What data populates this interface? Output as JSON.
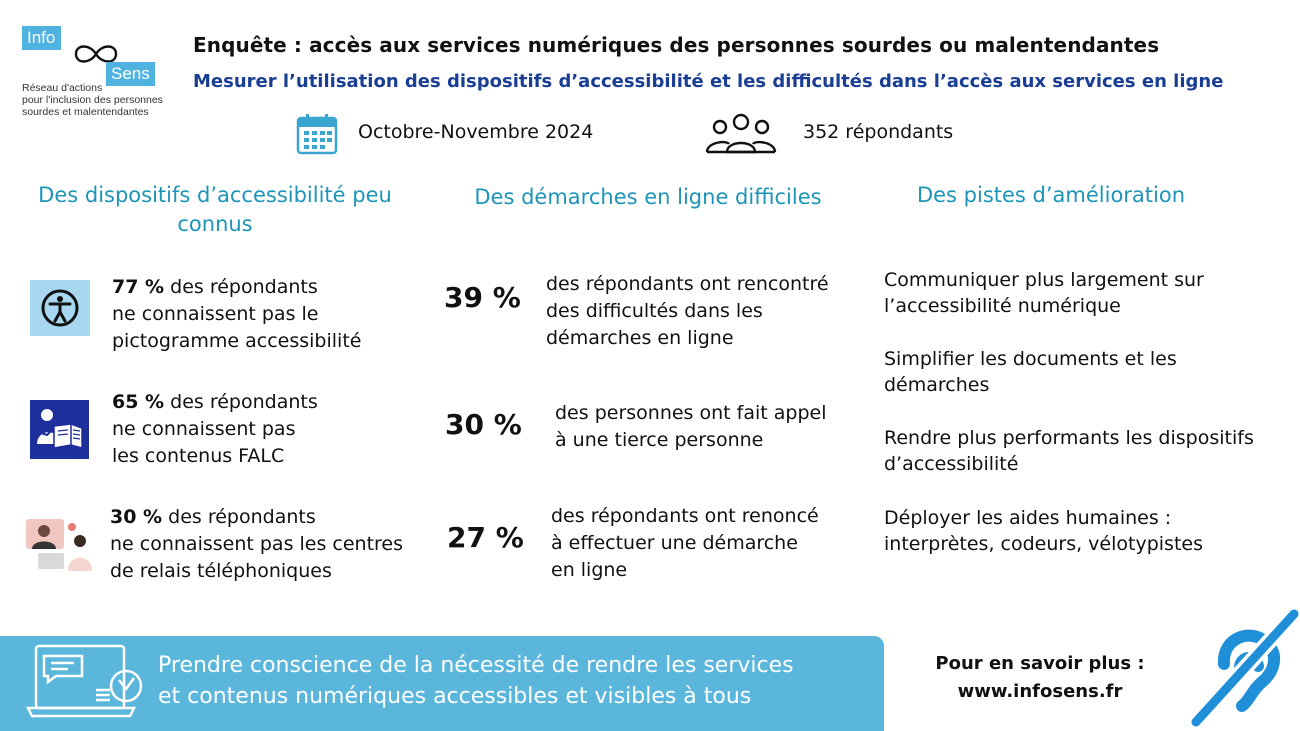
{
  "logo": {
    "word1": "Info",
    "word2": "Sens",
    "tagline": [
      "Réseau d'actions",
      "pour l'inclusion des personnes",
      "sourdes et malentendantes"
    ]
  },
  "header": {
    "title": "Enquête : accès aux services numériques des personnes sourdes ou malentendantes",
    "subtitle": "Mesurer l’utilisation des dispositifs d’accessibilité et les difficultés dans l’accès aux services en ligne"
  },
  "meta": {
    "date": "Octobre-Novembre 2024",
    "respondents": "352 répondants"
  },
  "columns": {
    "accessibility": {
      "heading_line1": "Des dispositifs d’accessibilité peu",
      "heading_line2": "connus",
      "items": [
        {
          "pct": "77 %",
          "line1": " des répondants",
          "line2": "ne connaissent pas le",
          "line3": "pictogramme accessibilité",
          "icon": "accessibility-pictogram-icon"
        },
        {
          "pct": "65 %",
          "line1": " des répondants",
          "line2": "ne connaissent pas",
          "line3": "les contenus FALC",
          "icon": "falc-easy-read-icon"
        },
        {
          "pct": "30 %",
          "line1": " des répondants",
          "line2": "ne connaissent pas les centres",
          "line3": "de relais téléphoniques",
          "icon": "relay-center-icon"
        }
      ]
    },
    "online": {
      "heading": "Des démarches en ligne difficiles",
      "items": [
        {
          "pct": "39 %",
          "line1": "des répondants ont rencontré",
          "line2": "des difficultés dans les",
          "line3": "démarches en ligne"
        },
        {
          "pct": "30 %",
          "line1": "des personnes ont fait appel",
          "line2": "à une tierce personne",
          "line3": ""
        },
        {
          "pct": "27 %",
          "line1": "des répondants ont renoncé",
          "line2": "à effectuer une démarche",
          "line3": "en ligne"
        }
      ]
    },
    "improvements": {
      "heading": "Des pistes d’amélioration",
      "items": [
        {
          "line1": "Communiquer plus largement sur",
          "line2": "l’accessibilité numérique"
        },
        {
          "line1": "Simplifier les documents et les",
          "line2": "démarches"
        },
        {
          "line1": "Rendre plus performants les dispositifs",
          "line2": "d’accessibilité"
        },
        {
          "line1": "Déployer les aides humaines :",
          "line2": "interprètes, codeurs, vélotypistes"
        }
      ]
    }
  },
  "banner": {
    "line1": "Prendre conscience de la nécessité de rendre les services",
    "line2": "et contenus numériques accessibles et visibles à tous"
  },
  "footer": {
    "more_label": "Pour en savoir plus :",
    "url": "www.infosens.fr"
  },
  "colors": {
    "heading_teal": "#1c95b8",
    "subtitle_blue": "#1a3e94",
    "banner": "#5ab6db",
    "ear_blue": "#1f8fd8"
  }
}
